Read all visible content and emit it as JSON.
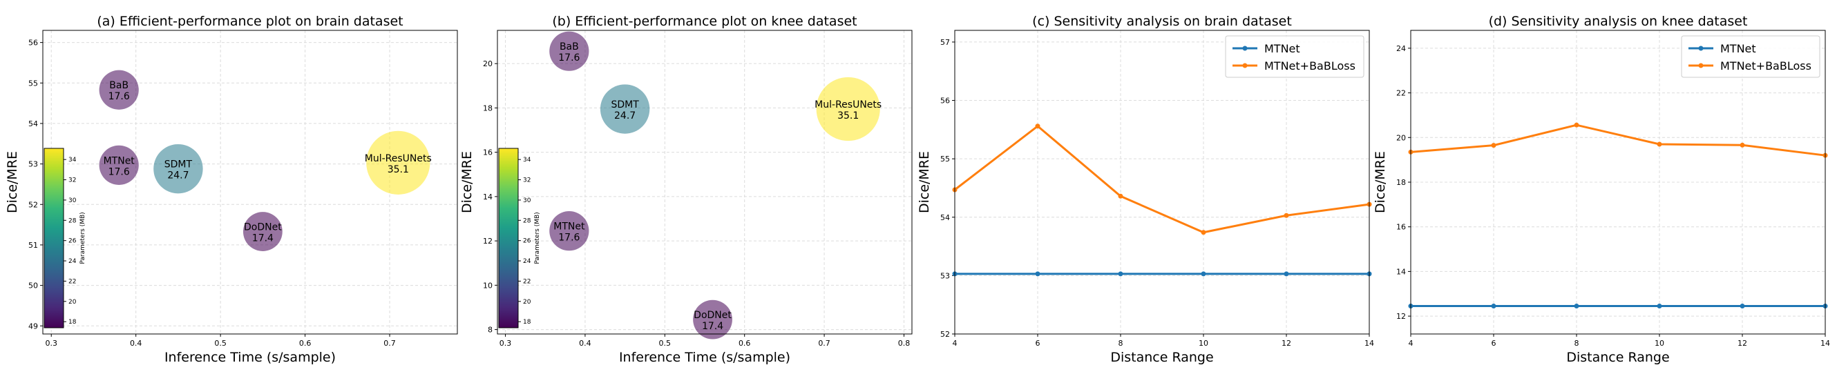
{
  "chart_data": [
    {
      "type": "scatter",
      "title": "(a) Efficient-performance plot on brain dataset",
      "xlabel": "Inference Time (s/sample)",
      "ylabel": "Dice/MRE",
      "xlim": [
        0.29,
        0.78
      ],
      "ylim": [
        48.8,
        56.3
      ],
      "xticks": [
        0.3,
        0.4,
        0.5,
        0.6,
        0.7
      ],
      "yticks": [
        49,
        50,
        51,
        52,
        53,
        54,
        55,
        56
      ],
      "grid": true,
      "colorbar": {
        "label": "Parameters (MB)",
        "min": 17.4,
        "max": 35.1,
        "ticks": [
          18,
          20,
          22,
          24,
          26,
          28,
          30,
          32,
          34
        ],
        "colormap": "viridis"
      },
      "points": [
        {
          "name": "BaB",
          "x": 0.38,
          "y": 54.83,
          "params": 17.6,
          "param_label": "17.6"
        },
        {
          "name": "MTNet",
          "x": 0.38,
          "y": 52.97,
          "params": 17.6,
          "param_label": "17.6"
        },
        {
          "name": "SDMT",
          "x": 0.45,
          "y": 52.88,
          "params": 24.7,
          "param_label": "24.7"
        },
        {
          "name": "DoDNet",
          "x": 0.55,
          "y": 51.33,
          "params": 17.4,
          "param_label": "17.4"
        },
        {
          "name": "Mul-ResUNets",
          "x": 0.71,
          "y": 53.03,
          "params": 35.1,
          "param_label": "35.1"
        }
      ]
    },
    {
      "type": "scatter",
      "title": "(b) Efficient-performance plot on knee dataset",
      "xlabel": "Inference Time (s/sample)",
      "ylabel": "Dice/MRE",
      "xlim": [
        0.29,
        0.81
      ],
      "ylim": [
        7.8,
        21.5
      ],
      "xticks": [
        0.3,
        0.4,
        0.5,
        0.6,
        0.7,
        0.8
      ],
      "yticks": [
        8,
        10,
        12,
        14,
        16,
        18,
        20
      ],
      "grid": true,
      "colorbar": {
        "label": "Parameters (MB)",
        "min": 17.4,
        "max": 35.1,
        "ticks": [
          18,
          20,
          22,
          24,
          26,
          28,
          30,
          32,
          34
        ],
        "colormap": "viridis"
      },
      "points": [
        {
          "name": "BaB",
          "x": 0.38,
          "y": 20.56,
          "params": 17.6,
          "param_label": "17.6"
        },
        {
          "name": "SDMT",
          "x": 0.45,
          "y": 17.95,
          "params": 24.7,
          "param_label": "24.7"
        },
        {
          "name": "MTNet",
          "x": 0.38,
          "y": 12.45,
          "params": 17.6,
          "param_label": "17.6"
        },
        {
          "name": "DoDNet",
          "x": 0.56,
          "y": 8.45,
          "params": 17.4,
          "param_label": "17.4"
        },
        {
          "name": "Mul-ResUNets",
          "x": 0.73,
          "y": 17.95,
          "params": 35.1,
          "param_label": "35.1"
        }
      ]
    },
    {
      "type": "line",
      "title": "(c) Sensitivity analysis on brain dataset",
      "xlabel": "Distance Range",
      "ylabel": "Dice/MRE",
      "xlim": [
        4,
        14
      ],
      "ylim": [
        52,
        57.2
      ],
      "xticks": [
        4,
        6,
        8,
        10,
        12,
        14
      ],
      "yticks": [
        52,
        53,
        54,
        55,
        56,
        57
      ],
      "grid": true,
      "legend": "top-right",
      "x": [
        4,
        6,
        8,
        10,
        12,
        14
      ],
      "series": [
        {
          "name": "MTNet",
          "color": "#1f77b4",
          "values": [
            53.03,
            53.03,
            53.03,
            53.03,
            53.03,
            53.03
          ]
        },
        {
          "name": "MTNet+BaBLoss",
          "color": "#ff7f0e",
          "values": [
            54.47,
            55.56,
            54.36,
            53.74,
            54.03,
            54.22
          ]
        }
      ]
    },
    {
      "type": "line",
      "title": "(d) Sensitivity analysis on knee dataset",
      "xlabel": "Distance Range",
      "ylabel": "Dice/MRE",
      "xlim": [
        4,
        14
      ],
      "ylim": [
        11.2,
        24.8
      ],
      "xticks": [
        4,
        6,
        8,
        10,
        12,
        14
      ],
      "yticks": [
        12,
        14,
        16,
        18,
        20,
        22,
        24
      ],
      "grid": true,
      "legend": "top-right",
      "x": [
        4,
        6,
        8,
        10,
        12,
        14
      ],
      "series": [
        {
          "name": "MTNet",
          "color": "#1f77b4",
          "values": [
            12.45,
            12.45,
            12.45,
            12.45,
            12.45,
            12.45
          ]
        },
        {
          "name": "MTNet+BaBLoss",
          "color": "#ff7f0e",
          "values": [
            19.35,
            19.65,
            20.56,
            19.7,
            19.66,
            19.2
          ]
        }
      ]
    }
  ]
}
